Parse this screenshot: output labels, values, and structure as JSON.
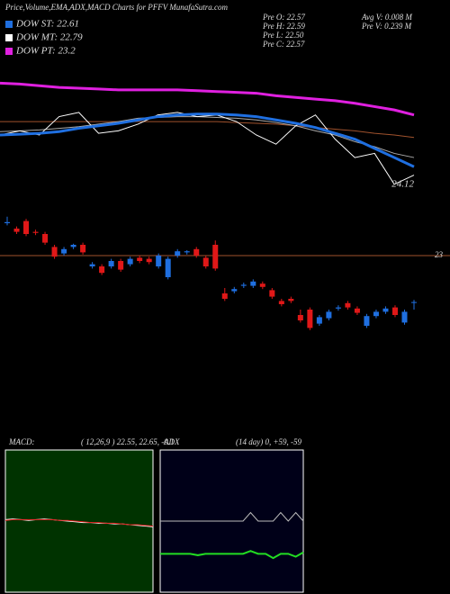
{
  "header": {
    "title": "Price,Volume,EMA,ADX,MACD Charts for PFFV MunafaSutra.com",
    "legend": [
      {
        "label": "DOW ST: 22.61",
        "color": "#1f6fe0"
      },
      {
        "label": "DOW MT: 22.79",
        "color": "#ffffff"
      },
      {
        "label": "DOW PT: 23.2",
        "color": "#e020e0"
      }
    ],
    "info": [
      [
        "Pre   O: 22.57",
        "Avg V: 0.008 M"
      ],
      [
        "Pre   H: 22.59",
        "Pre   V: 0.239 M"
      ],
      [
        "Pre   L: 22.50"
      ],
      [
        "Pre   C: 22.57"
      ]
    ]
  },
  "chart_data": [
    {
      "type": "line",
      "x": [
        0,
        1,
        2,
        3,
        4,
        5,
        6,
        7,
        8,
        9,
        10,
        11,
        12,
        13,
        14,
        15,
        16,
        17,
        18,
        19,
        20,
        21
      ],
      "xlim": [
        0,
        21
      ],
      "ylim": [
        24.0,
        25.4
      ],
      "annotation": {
        "value": 24.12,
        "label": "24.12"
      },
      "series": [
        {
          "color": "#a0522d",
          "width": 1,
          "values": [
            24.86,
            24.86,
            24.86,
            24.86,
            24.86,
            24.86,
            24.86,
            24.86,
            24.86,
            24.86,
            24.86,
            24.86,
            24.85,
            24.84,
            24.83,
            24.81,
            24.79,
            24.77,
            24.75,
            24.72,
            24.7,
            24.67
          ]
        },
        {
          "color": "#aaaaaa",
          "width": 1,
          "values": [
            24.74,
            24.75,
            24.76,
            24.78,
            24.8,
            24.83,
            24.86,
            24.9,
            24.91,
            24.92,
            24.92,
            24.91,
            24.9,
            24.88,
            24.85,
            24.81,
            24.75,
            24.7,
            24.62,
            24.56,
            24.48,
            24.43
          ]
        },
        {
          "color": "#e020e0",
          "width": 3,
          "values": [
            25.32,
            25.31,
            25.29,
            25.27,
            25.26,
            25.25,
            25.24,
            25.24,
            25.24,
            25.24,
            25.23,
            25.22,
            25.21,
            25.2,
            25.17,
            25.15,
            25.13,
            25.11,
            25.08,
            25.04,
            25.0,
            24.94
          ]
        },
        {
          "color": "#ffffff",
          "width": 1,
          "values": [
            24.7,
            24.75,
            24.7,
            24.92,
            24.97,
            24.72,
            24.75,
            24.83,
            24.94,
            24.97,
            24.92,
            24.94,
            24.86,
            24.7,
            24.59,
            24.81,
            24.94,
            24.65,
            24.43,
            24.48,
            24.11,
            24.22
          ]
        },
        {
          "color": "#1f6fe0",
          "width": 3,
          "values": [
            24.7,
            24.71,
            24.72,
            24.74,
            24.78,
            24.81,
            24.84,
            24.88,
            24.92,
            24.94,
            24.95,
            24.95,
            24.94,
            24.92,
            24.88,
            24.84,
            24.79,
            24.72,
            24.65,
            24.54,
            24.43,
            24.32
          ]
        }
      ]
    },
    {
      "type": "candlestick",
      "ylim": [
        22.2,
        23.45
      ],
      "up_color": "#1f6fe0",
      "down_color": "#e01818",
      "reference_line": {
        "value": 23,
        "label": "23",
        "color": "#a0522d"
      },
      "open": [
        23.3,
        23.25,
        23.32,
        23.22,
        23.2,
        23.08,
        23.02,
        23.08,
        23.1,
        22.9,
        22.9,
        22.9,
        22.95,
        22.92,
        22.98,
        22.97,
        22.9,
        22.8,
        23.0,
        23.03,
        23.06,
        22.98,
        23.1,
        22.65,
        22.67,
        22.72,
        22.72,
        22.74,
        22.68,
        22.58,
        22.6,
        22.45,
        22.5,
        22.37,
        22.42,
        22.51,
        22.56,
        22.51,
        22.35,
        22.44,
        22.48,
        22.52,
        22.38,
        22.57
      ],
      "high": [
        23.36,
        23.27,
        23.34,
        23.24,
        23.22,
        23.1,
        23.08,
        23.11,
        23.12,
        22.94,
        22.92,
        22.97,
        22.97,
        22.99,
        23.0,
        22.99,
        23.02,
        22.99,
        23.06,
        23.05,
        23.08,
        23.0,
        23.14,
        22.7,
        22.71,
        22.75,
        22.78,
        22.76,
        22.7,
        22.6,
        22.62,
        22.5,
        22.52,
        22.45,
        22.5,
        22.54,
        22.58,
        22.53,
        22.46,
        22.5,
        22.53,
        22.54,
        22.5,
        22.59
      ],
      "low": [
        23.28,
        23.2,
        23.18,
        23.19,
        23.1,
        22.97,
        23.0,
        23.06,
        23.01,
        22.88,
        22.82,
        22.88,
        22.85,
        22.9,
        22.93,
        22.92,
        22.88,
        22.78,
        22.98,
        23.01,
        22.98,
        22.88,
        22.86,
        22.58,
        22.65,
        22.7,
        22.7,
        22.69,
        22.6,
        22.53,
        22.56,
        22.38,
        22.31,
        22.35,
        22.4,
        22.49,
        22.5,
        22.45,
        22.33,
        22.42,
        22.46,
        22.43,
        22.36,
        22.5
      ],
      "close": [
        23.31,
        23.22,
        23.2,
        23.21,
        23.12,
        22.99,
        23.06,
        23.1,
        23.03,
        22.92,
        22.84,
        22.95,
        22.87,
        22.97,
        22.95,
        22.94,
        23.0,
        22.97,
        23.04,
        23.04,
        23.0,
        22.9,
        22.88,
        22.6,
        22.69,
        22.73,
        22.76,
        22.71,
        22.62,
        22.55,
        22.58,
        22.4,
        22.33,
        22.43,
        22.48,
        22.52,
        22.52,
        22.47,
        22.44,
        22.48,
        22.51,
        22.45,
        22.48,
        22.57
      ]
    },
    {
      "type": "line",
      "label": "MACD:",
      "params": "( 12,26,9 ) 22.55, 22.65, -0.1",
      "background": "#003300",
      "x": [
        0,
        1,
        2,
        3,
        4,
        5,
        6,
        7,
        8,
        9,
        10,
        11,
        12,
        13,
        14,
        15,
        16,
        17,
        18,
        19
      ],
      "xlim": [
        0,
        19
      ],
      "ylim": [
        -1,
        1
      ],
      "series": [
        {
          "color": "#ffffff",
          "width": 1,
          "values": [
            0.02,
            0.03,
            0.02,
            0.01,
            0.02,
            0.03,
            0.02,
            0.01,
            0,
            -0.01,
            -0.02,
            -0.02,
            -0.03,
            -0.03,
            -0.04,
            -0.04,
            -0.05,
            -0.06,
            -0.07,
            -0.08
          ]
        },
        {
          "color": "#e01818",
          "width": 1,
          "values": [
            0.01,
            0.02,
            0.02,
            0.02,
            0.02,
            0.02,
            0.02,
            0.01,
            0.01,
            0,
            -0.01,
            -0.02,
            -0.02,
            -0.03,
            -0.03,
            -0.04,
            -0.05,
            -0.05,
            -0.06,
            -0.07
          ]
        }
      ]
    },
    {
      "type": "line",
      "label": "ADX",
      "params": "(14 day) 0, +59, -59",
      "background": "#000018",
      "x": [
        0,
        1,
        2,
        3,
        4,
        5,
        6,
        7,
        8,
        9,
        10,
        11,
        12,
        13,
        14,
        15,
        16,
        17,
        18,
        19
      ],
      "xlim": [
        0,
        19
      ],
      "ylim": [
        0,
        100
      ],
      "series": [
        {
          "color": "#bbbbbb",
          "width": 1,
          "values": [
            50,
            50,
            50,
            50,
            50,
            50,
            50,
            50,
            50,
            50,
            50,
            50,
            56,
            50,
            50,
            50,
            56,
            50,
            56,
            50
          ]
        },
        {
          "color": "#22dd22",
          "width": 2,
          "values": [
            27,
            27,
            27,
            27,
            27,
            26,
            27,
            27,
            27,
            27,
            27,
            27,
            29,
            27,
            27,
            24,
            27,
            27,
            25,
            28
          ]
        }
      ]
    }
  ]
}
